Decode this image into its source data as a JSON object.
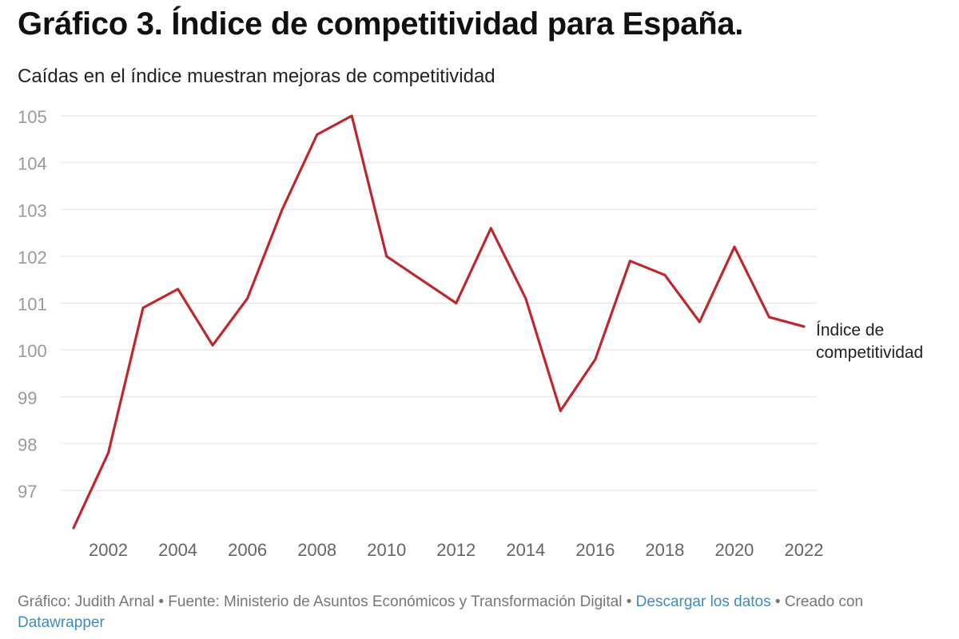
{
  "header": {
    "title": "Gráfico 3. Índice de competitividad para España.",
    "subtitle": "Caídas en el índice muestran mejoras de competitividad"
  },
  "chart_data": {
    "type": "line",
    "title": "Gráfico 3. Índice de competitividad para España.",
    "subtitle": "Caídas en el índice muestran mejoras de competitividad",
    "xlabel": "",
    "ylabel": "",
    "x": [
      2001,
      2002,
      2003,
      2004,
      2005,
      2006,
      2007,
      2008,
      2009,
      2010,
      2011,
      2012,
      2013,
      2014,
      2015,
      2016,
      2017,
      2018,
      2019,
      2020,
      2021,
      2022
    ],
    "x_ticks": [
      "2002",
      "2004",
      "2006",
      "2008",
      "2010",
      "2012",
      "2014",
      "2016",
      "2018",
      "2020",
      "2022"
    ],
    "y_ticks": [
      "97",
      "98",
      "99",
      "100",
      "101",
      "102",
      "103",
      "104",
      "105"
    ],
    "ylim": [
      96.2,
      105
    ],
    "grid": true,
    "series": [
      {
        "name": "Índice de competitividad",
        "label_lines": [
          "Índice de",
          "competitividad"
        ],
        "color": "#c0272d",
        "values": [
          96.2,
          97.8,
          100.9,
          101.3,
          100.1,
          101.1,
          103.0,
          104.6,
          105.0,
          102.0,
          101.5,
          101.0,
          102.6,
          101.1,
          98.7,
          99.8,
          101.9,
          101.6,
          100.6,
          102.2,
          100.7,
          100.5
        ]
      }
    ]
  },
  "footer": {
    "prefix": "Gráfico: Judith Arnal • Fuente: Ministerio de Asuntos Económicos y Transformación Digital • ",
    "download_link": "Descargar los datos",
    "middle": " • Creado con ",
    "tool_link": "Datawrapper"
  }
}
